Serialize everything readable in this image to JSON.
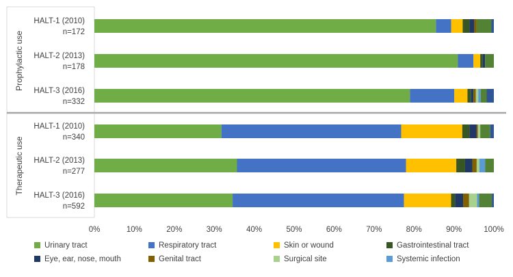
{
  "chart_data": {
    "type": "bar",
    "orientation": "horizontal",
    "stacked": "percent",
    "xlim": [
      0,
      100
    ],
    "x_ticks": [
      "0%",
      "10%",
      "20%",
      "30%",
      "40%",
      "50%",
      "60%",
      "70%",
      "80%",
      "90%",
      "100%"
    ],
    "grid": false,
    "legend_position": "bottom",
    "groups": [
      {
        "label": "Prophylactic use",
        "rows": [
          {
            "label_line1": "HALT-1 (2010)",
            "label_line2": "n=172",
            "values": [
              85.5,
              3.8,
              2.9,
              1.7,
              1.2,
              0.6,
              0,
              0,
              3.7,
              0.6
            ]
          },
          {
            "label_line1": "HALT-2 (2013)",
            "label_line2": "n=178",
            "values": [
              91.0,
              3.9,
              1.7,
              0.6,
              0.6,
              0,
              0,
              0,
              2.2,
              0
            ]
          },
          {
            "label_line1": "HALT-3 (2016)",
            "label_line2": "n=332",
            "values": [
              79.0,
              11.1,
              3.3,
              0.9,
              0.6,
              0.6,
              0.6,
              0.6,
              1.5,
              1.8
            ]
          }
        ]
      },
      {
        "label": "Therapeutic use",
        "rows": [
          {
            "label_line1": "HALT-1 (2010)",
            "label_line2": "n=340",
            "values": [
              31.8,
              45.0,
              15.3,
              1.8,
              1.8,
              0.3,
              0.6,
              0,
              2.5,
              0.9
            ]
          },
          {
            "label_line1": "HALT-2 (2013)",
            "label_line2": "n=277",
            "values": [
              35.7,
              42.3,
              12.6,
              2.2,
              1.8,
              1.1,
              0.7,
              1.4,
              2.2,
              0
            ]
          },
          {
            "label_line1": "HALT-3 (2016)",
            "label_line2": "n=592",
            "values": [
              34.6,
              42.9,
              11.8,
              1.0,
              2.0,
              1.5,
              2.0,
              0.5,
              3.2,
              0.5
            ]
          }
        ]
      }
    ],
    "series": [
      {
        "name": "Urinary tract",
        "color": "#70AD47"
      },
      {
        "name": "Respiratory tract",
        "color": "#4472C4"
      },
      {
        "name": "Skin or wound",
        "color": "#FFC000"
      },
      {
        "name": "Gastrointestinal tract",
        "color": "#375623"
      },
      {
        "name": "Eye, ear, nose, mouth",
        "color": "#203864"
      },
      {
        "name": "Genital tract",
        "color": "#806000"
      },
      {
        "name": "Surgical site",
        "color": "#A9D18E"
      },
      {
        "name": "Systemic infection",
        "color": "#5B9BD5"
      },
      {
        "name": "",
        "color": "#548235"
      },
      {
        "name": "",
        "color": "#2F5597"
      }
    ]
  },
  "colors": {
    "divider": "#a6a6a6",
    "axis": "#d9d9d9",
    "text": "#404040"
  }
}
